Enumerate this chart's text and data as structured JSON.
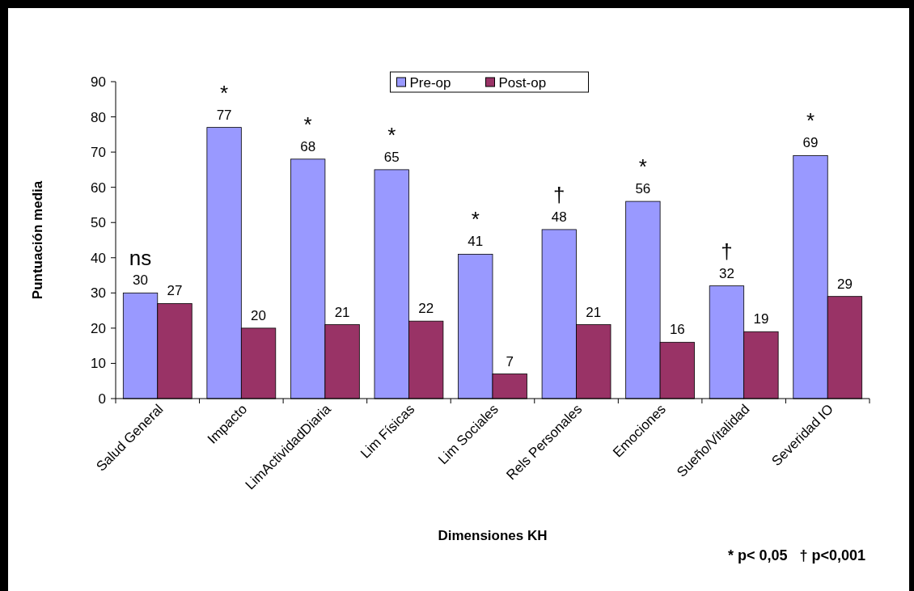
{
  "chart_data": {
    "type": "bar",
    "xlabel": "Dimensiones KH",
    "ylabel": "Puntuación media",
    "categories": [
      "Salud General",
      "Impacto",
      "LimActividadDiaria",
      "Lim Físicas",
      "Lim Sociales",
      "Rels Personales",
      "Emociones",
      "Sueño/Vitalidad",
      "Severidad IO"
    ],
    "series": [
      {
        "name": "Pre-op",
        "color": "#9999ff",
        "values": [
          30,
          77,
          68,
          65,
          41,
          48,
          56,
          32,
          69
        ]
      },
      {
        "name": "Post-op",
        "color": "#993366",
        "values": [
          27,
          20,
          21,
          22,
          7,
          21,
          16,
          19,
          29
        ]
      }
    ],
    "ylim": [
      0,
      90
    ],
    "yticks": [
      0,
      10,
      20,
      30,
      40,
      50,
      60,
      70,
      80,
      90
    ],
    "data_labels": true,
    "grid": false,
    "legend": "top",
    "annotations": [
      "ns",
      "*",
      "*",
      "*",
      "*",
      "†",
      "*",
      "†",
      "*",
      "* p< 0,05   † p<0,001"
    ]
  }
}
